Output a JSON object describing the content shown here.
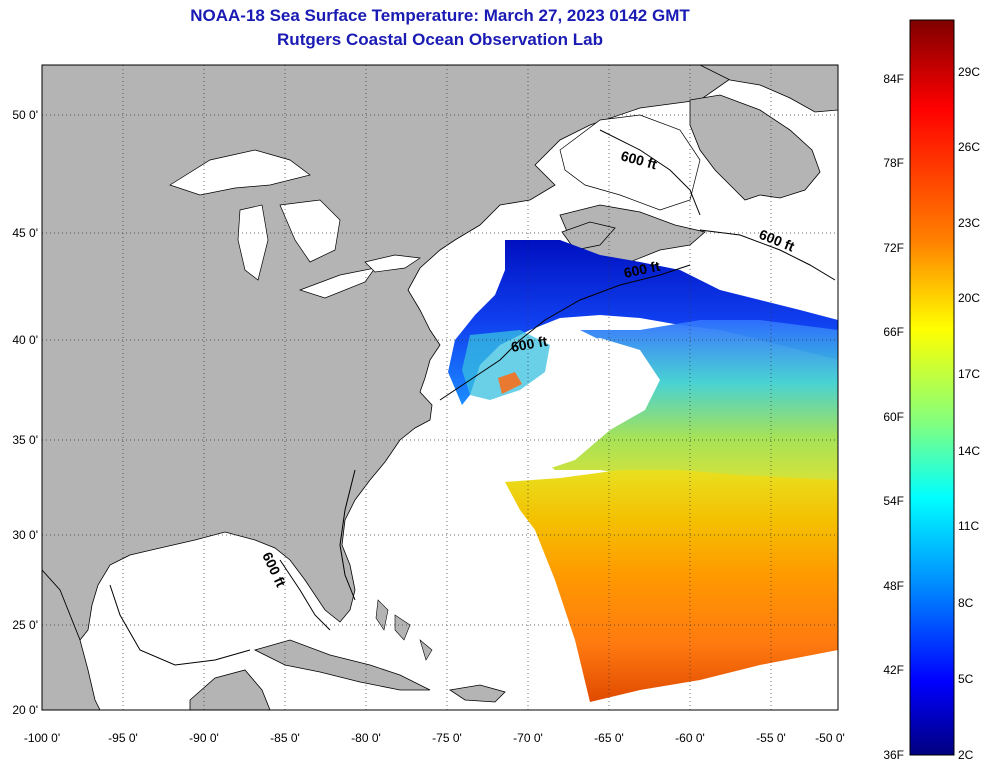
{
  "title_line1": "NOAA-18 Sea Surface Temperature:  March 27, 2023 0142 GMT",
  "title_line2": "Rutgers Coastal Ocean Observation Lab",
  "map": {
    "lon_range": [
      -100,
      -50
    ],
    "lat_range": [
      20,
      52
    ],
    "lon_ticks": [
      "-100 0'",
      "-95 0'",
      "-90 0'",
      "-85 0'",
      "-80 0'",
      "-75 0'",
      "-70 0'",
      "-65 0'",
      "-60 0'",
      "-55 0'",
      "-50 0'"
    ],
    "lat_ticks": [
      "20 0'",
      "25 0'",
      "30 0'",
      "35 0'",
      "40 0'",
      "45 0'",
      "50 0'"
    ],
    "grid": "dotted",
    "land_color": "#b4b4b4",
    "contour_labels": [
      "600 ft",
      "600 ft",
      "600 ft",
      "600 ft",
      "600 ft"
    ]
  },
  "colorbar": {
    "fahrenheit_labels": [
      "84F",
      "78F",
      "72F",
      "66F",
      "60F",
      "54F",
      "48F",
      "42F",
      "36F"
    ],
    "celsius_labels": [
      "29C",
      "26C",
      "23C",
      "20C",
      "17C",
      "14C",
      "11C",
      "8C",
      "5C",
      "2C"
    ],
    "colors": [
      "#00007f",
      "#0000ff",
      "#007fff",
      "#00ffff",
      "#7fff7f",
      "#ffff00",
      "#ff7f00",
      "#ff0000",
      "#7f0000"
    ]
  }
}
